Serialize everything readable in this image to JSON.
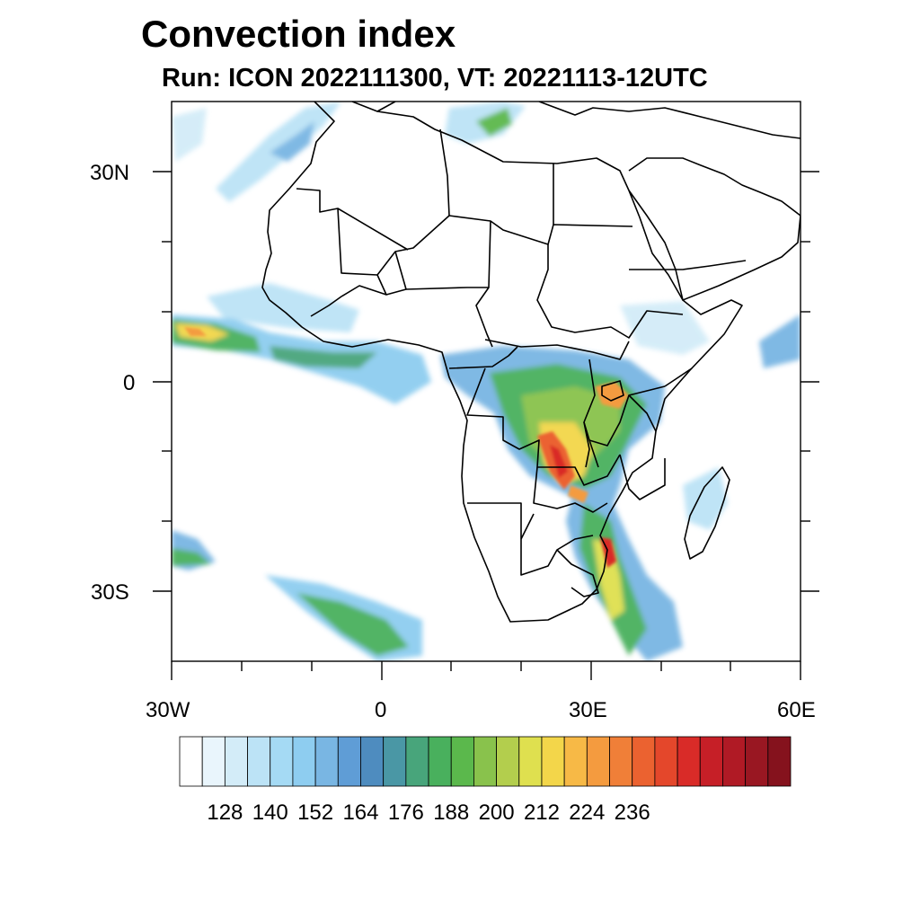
{
  "title": "Convection index",
  "subtitle": "Run: ICON 2022111300,  VT: 20221113-12UTC",
  "axes": {
    "lat_labels": [
      "30N",
      "0",
      "30S"
    ],
    "lon_labels": [
      "30W",
      "0",
      "30E",
      "60E"
    ]
  },
  "colorbar": {
    "tick_labels": [
      "128",
      "140",
      "152",
      "164",
      "176",
      "188",
      "200",
      "212",
      "224",
      "236"
    ],
    "colors": [
      "#ffffff",
      "#e9f5fc",
      "#d3ecf8",
      "#bce3f6",
      "#a5daf4",
      "#8ecdf0",
      "#79b6e3",
      "#5f9dd6",
      "#4e8cbf",
      "#4a97a5",
      "#48a57b",
      "#49b05d",
      "#5bb84c",
      "#89c24c",
      "#b3ce4d",
      "#dfe04f",
      "#f3d64a",
      "#f7b946",
      "#f49b3f",
      "#f07f38",
      "#eb6230",
      "#e4472b",
      "#d92b28",
      "#c61f27",
      "#b01a25",
      "#991722",
      "#85121d"
    ]
  }
}
